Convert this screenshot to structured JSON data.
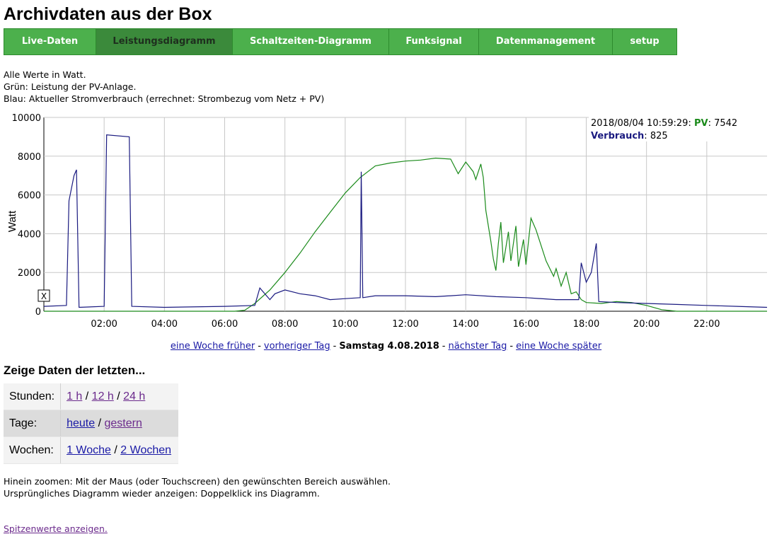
{
  "title": "Archivdaten aus der Box",
  "nav": [
    {
      "label": "Live-Daten",
      "active": false
    },
    {
      "label": "Leistungsdiagramm",
      "active": true
    },
    {
      "label": "Schaltzeiten-Diagramm",
      "active": false
    },
    {
      "label": "Funksignal",
      "active": false
    },
    {
      "label": "Datenmanagement",
      "active": false
    },
    {
      "label": "setup",
      "active": false
    }
  ],
  "info": {
    "line1": "Alle Werte in Watt.",
    "line2": "Grün: Leistung der PV-Anlage.",
    "line3": "Blau: Aktueller Stromverbrauch (errechnet: Strombezug vom Netz + PV)"
  },
  "chart_data": {
    "type": "line",
    "ylabel": "Watt",
    "ylim": [
      0,
      10000
    ],
    "xlim": [
      "00:00",
      "24:00"
    ],
    "x_ticks": [
      "02:00",
      "04:00",
      "06:00",
      "08:00",
      "10:00",
      "12:00",
      "14:00",
      "16:00",
      "18:00",
      "20:00",
      "22:00"
    ],
    "y_ticks": [
      "0",
      "2000",
      "4000",
      "6000",
      "8000",
      "10000"
    ],
    "grid": true,
    "reset_button": "X",
    "tooltip": {
      "time": "2018/08/04 10:59:29",
      "pv_label": "PV",
      "pv_value": "7542",
      "verbrauch_label": "Verbrauch",
      "verbrauch_value": "825",
      "sep": ": "
    },
    "colors": {
      "pv": "#1a8a1a",
      "verbrauch": "#1a1a80",
      "grid": "#c8c8c8"
    },
    "series": [
      {
        "key": "pv",
        "points": [
          [
            "00:00",
            0
          ],
          [
            "06:20",
            0
          ],
          [
            "06:40",
            50
          ],
          [
            "07:00",
            400
          ],
          [
            "07:30",
            1100
          ],
          [
            "08:00",
            2000
          ],
          [
            "08:30",
            3000
          ],
          [
            "09:00",
            4100
          ],
          [
            "09:30",
            5100
          ],
          [
            "10:00",
            6100
          ],
          [
            "10:30",
            6900
          ],
          [
            "11:00",
            7500
          ],
          [
            "11:30",
            7650
          ],
          [
            "12:00",
            7750
          ],
          [
            "12:30",
            7800
          ],
          [
            "13:00",
            7900
          ],
          [
            "13:30",
            7850
          ],
          [
            "13:45",
            7100
          ],
          [
            "14:00",
            7700
          ],
          [
            "14:15",
            7200
          ],
          [
            "14:20",
            6800
          ],
          [
            "14:30",
            7600
          ],
          [
            "14:35",
            6900
          ],
          [
            "14:40",
            5200
          ],
          [
            "14:50",
            3600
          ],
          [
            "14:55",
            2700
          ],
          [
            "15:00",
            2100
          ],
          [
            "15:05",
            3500
          ],
          [
            "15:10",
            4600
          ],
          [
            "15:15",
            2500
          ],
          [
            "15:25",
            4100
          ],
          [
            "15:30",
            2600
          ],
          [
            "15:40",
            4400
          ],
          [
            "15:45",
            2300
          ],
          [
            "15:55",
            3700
          ],
          [
            "16:00",
            2400
          ],
          [
            "16:10",
            4800
          ],
          [
            "16:20",
            4200
          ],
          [
            "16:40",
            2600
          ],
          [
            "16:55",
            1800
          ],
          [
            "17:00",
            2200
          ],
          [
            "17:10",
            1300
          ],
          [
            "17:20",
            2000
          ],
          [
            "17:30",
            900
          ],
          [
            "17:40",
            1000
          ],
          [
            "17:50",
            600
          ],
          [
            "18:00",
            450
          ],
          [
            "18:30",
            400
          ],
          [
            "19:00",
            500
          ],
          [
            "19:30",
            450
          ],
          [
            "20:00",
            300
          ],
          [
            "20:30",
            80
          ],
          [
            "21:00",
            0
          ],
          [
            "24:00",
            0
          ]
        ]
      },
      {
        "key": "verbrauch",
        "points": [
          [
            "00:00",
            250
          ],
          [
            "00:45",
            300
          ],
          [
            "00:50",
            5700
          ],
          [
            "01:00",
            7000
          ],
          [
            "01:05",
            7300
          ],
          [
            "01:10",
            200
          ],
          [
            "02:00",
            250
          ],
          [
            "02:05",
            9100
          ],
          [
            "02:50",
            9000
          ],
          [
            "02:55",
            250
          ],
          [
            "04:00",
            200
          ],
          [
            "06:00",
            250
          ],
          [
            "07:00",
            300
          ],
          [
            "07:10",
            1200
          ],
          [
            "07:30",
            600
          ],
          [
            "07:40",
            900
          ],
          [
            "08:00",
            1100
          ],
          [
            "08:30",
            900
          ],
          [
            "09:00",
            800
          ],
          [
            "09:30",
            600
          ],
          [
            "10:00",
            650
          ],
          [
            "10:30",
            700
          ],
          [
            "10:32",
            7200
          ],
          [
            "10:35",
            700
          ],
          [
            "11:00",
            800
          ],
          [
            "12:00",
            800
          ],
          [
            "13:00",
            750
          ],
          [
            "13:30",
            800
          ],
          [
            "14:00",
            850
          ],
          [
            "15:00",
            750
          ],
          [
            "16:00",
            700
          ],
          [
            "17:00",
            600
          ],
          [
            "17:45",
            600
          ],
          [
            "17:50",
            2500
          ],
          [
            "18:00",
            1500
          ],
          [
            "18:10",
            2000
          ],
          [
            "18:20",
            3500
          ],
          [
            "18:25",
            500
          ],
          [
            "19:00",
            450
          ],
          [
            "20:00",
            400
          ],
          [
            "21:00",
            350
          ],
          [
            "22:00",
            300
          ],
          [
            "23:00",
            250
          ],
          [
            "24:00",
            200
          ]
        ]
      }
    ]
  },
  "day_nav": {
    "week_back": "eine Woche früher",
    "prev_day": "vorheriger Tag",
    "current": "Samstag 4.08.2018",
    "next_day": "nächster Tag",
    "week_forward": "eine Woche später",
    "sep": "-"
  },
  "range_heading": "Zeige Daten der letzten...",
  "range": {
    "hours": {
      "label": "Stunden:",
      "o1": "1 h",
      "o2": "12 h",
      "o3": "24 h"
    },
    "days": {
      "label": "Tage:",
      "o1": "heute",
      "o2": "gestern"
    },
    "weeks": {
      "label": "Wochen:",
      "o1": "1 Woche",
      "o2": "2 Wochen"
    },
    "slash": "/"
  },
  "help": {
    "line1": "Hinein zoomen: Mit der Maus (oder Touchscreen) den gewünschten Bereich auswählen.",
    "line2": "Ursprüngliches Diagramm wieder anzeigen: Doppelklick ins Diagramm."
  },
  "peak_link": "Spitzenwerte anzeigen."
}
